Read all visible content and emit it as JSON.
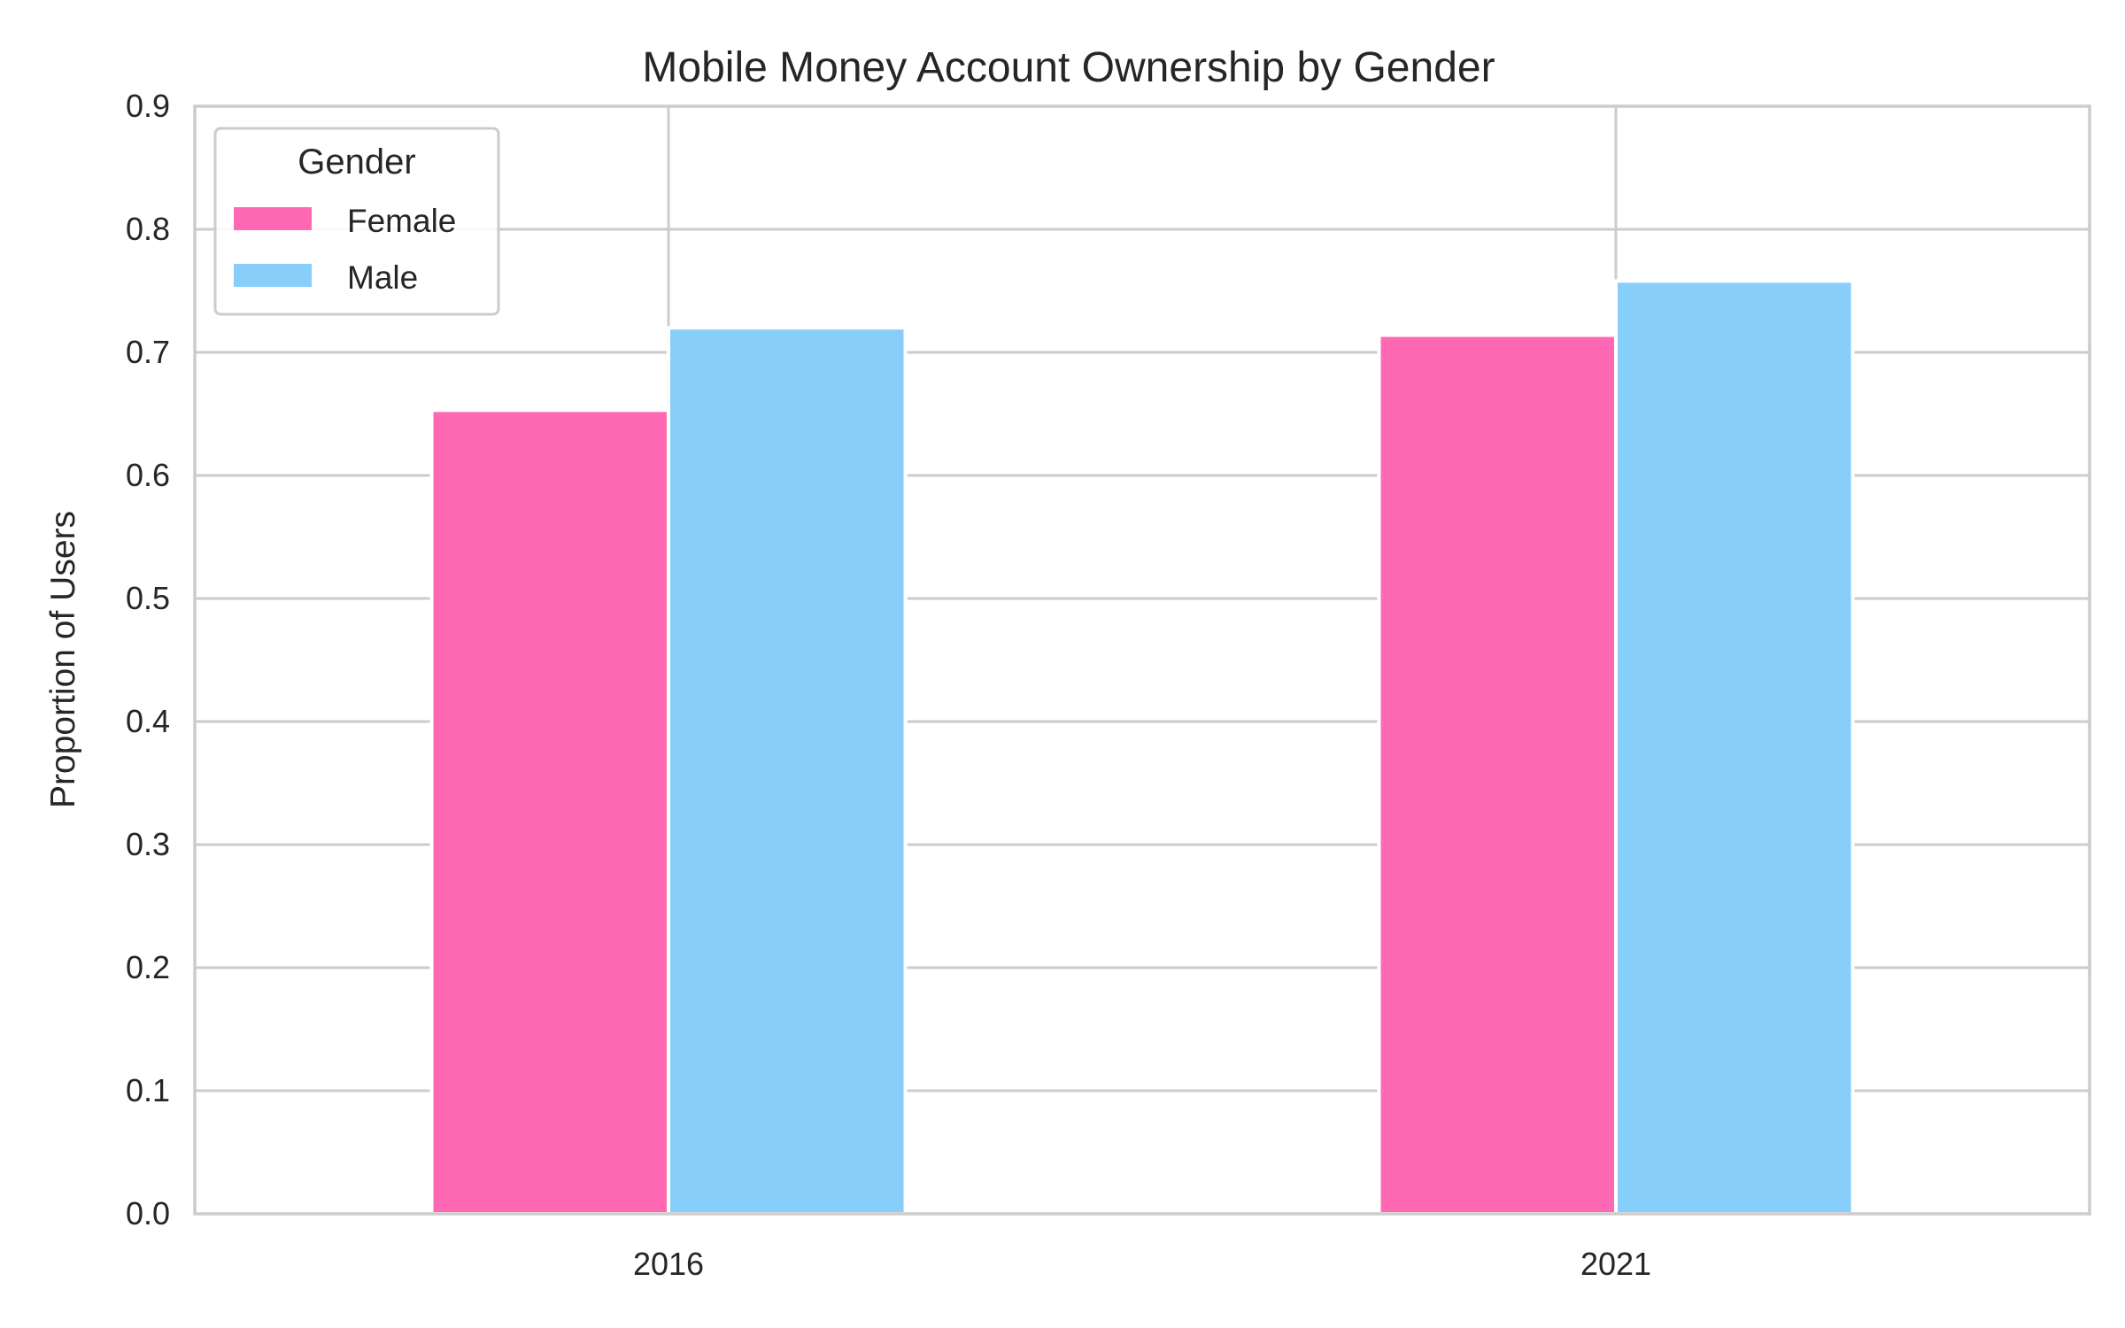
{
  "chart_data": {
    "type": "bar",
    "title": "Mobile Money Account Ownership by Gender",
    "xlabel": "",
    "ylabel": "Proportion of Users",
    "categories": [
      "2016",
      "2021"
    ],
    "series": [
      {
        "name": "Female",
        "values": [
          0.653,
          0.714
        ],
        "color": "#ff69b4"
      },
      {
        "name": "Male",
        "values": [
          0.72,
          0.758
        ],
        "color": "#87cefa"
      }
    ],
    "ylim": [
      0,
      0.9
    ],
    "yticks": [
      "0.0",
      "0.1",
      "0.2",
      "0.3",
      "0.4",
      "0.5",
      "0.6",
      "0.7",
      "0.8",
      "0.9"
    ],
    "grid": true,
    "legend": {
      "title": "Gender",
      "placement": "top-left"
    }
  }
}
